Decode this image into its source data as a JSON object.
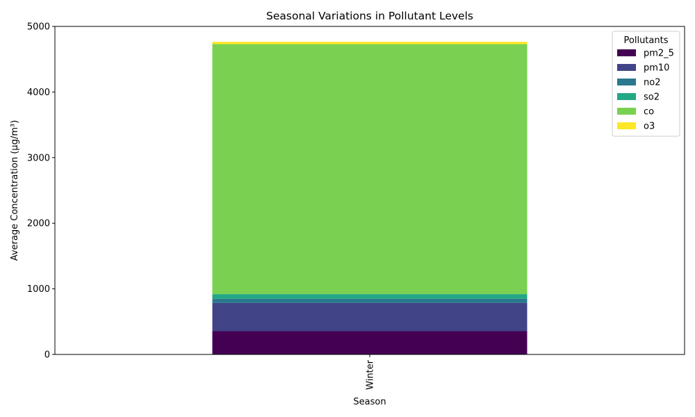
{
  "chart_data": {
    "type": "bar",
    "stacked": true,
    "title": "Seasonal Variations in Pollutant Levels",
    "xlabel": "Season",
    "ylabel": "Average Concentration (µg/m³)",
    "categories": [
      "Winter"
    ],
    "ylim": [
      0,
      5000
    ],
    "yticks": [
      0,
      1000,
      2000,
      3000,
      4000,
      5000
    ],
    "grid": false,
    "legend": {
      "title": "Pollutants",
      "placement": "top-right"
    },
    "series": [
      {
        "name": "pm2_5",
        "color": "#440154",
        "values": [
          355
        ]
      },
      {
        "name": "pm10",
        "color": "#414487",
        "values": [
          430
        ]
      },
      {
        "name": "no2",
        "color": "#2a788e",
        "values": [
          65
        ]
      },
      {
        "name": "so2",
        "color": "#22a884",
        "values": [
          70
        ]
      },
      {
        "name": "co",
        "color": "#7ad151",
        "values": [
          3810
        ]
      },
      {
        "name": "o3",
        "color": "#fde725",
        "values": [
          35
        ]
      }
    ]
  }
}
